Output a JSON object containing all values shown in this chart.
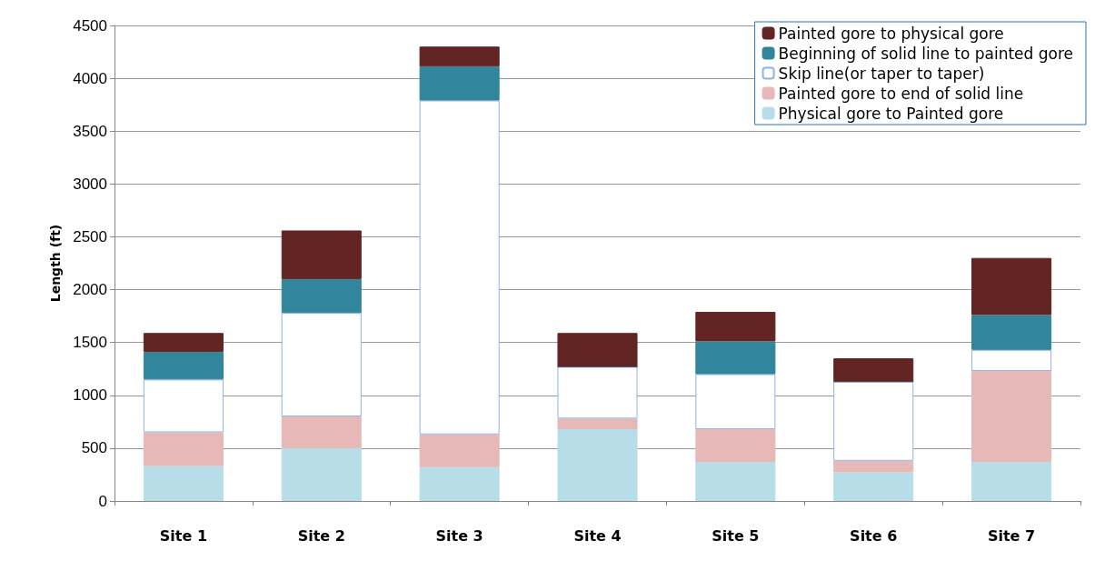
{
  "chart_data": {
    "type": "bar",
    "stacked": true,
    "ylabel": "Length (ft)",
    "categories": [
      "Site 1",
      "Site 2",
      "Site 3",
      "Site 4",
      "Site 5",
      "Site 6",
      "Site 7"
    ],
    "series": [
      {
        "name": "Physical gore to Painted gore",
        "color": "#b7dee8",
        "values": [
          330,
          500,
          320,
          680,
          370,
          270,
          370
        ]
      },
      {
        "name": "Painted gore to end of solid line",
        "color": "#e6b9b8",
        "values": [
          320,
          300,
          310,
          100,
          310,
          110,
          860
        ]
      },
      {
        "name": "Skip line(or taper to taper)",
        "color": "#ffffff",
        "values": [
          500,
          980,
          3160,
          490,
          520,
          750,
          200
        ]
      },
      {
        "name": "Beginning of solid line to painted gore",
        "color": "#31859c",
        "values": [
          260,
          320,
          320,
          0,
          310,
          0,
          330
        ]
      },
      {
        "name": "Painted gore to physical gore",
        "color": "#632523",
        "values": [
          180,
          460,
          190,
          320,
          280,
          220,
          540
        ]
      }
    ],
    "ylim": [
      0,
      4500
    ],
    "yticks": [
      0,
      500,
      1000,
      1500,
      2000,
      2500,
      3000,
      3500,
      4000,
      4500
    ],
    "grid": "y",
    "legend": "top right"
  }
}
